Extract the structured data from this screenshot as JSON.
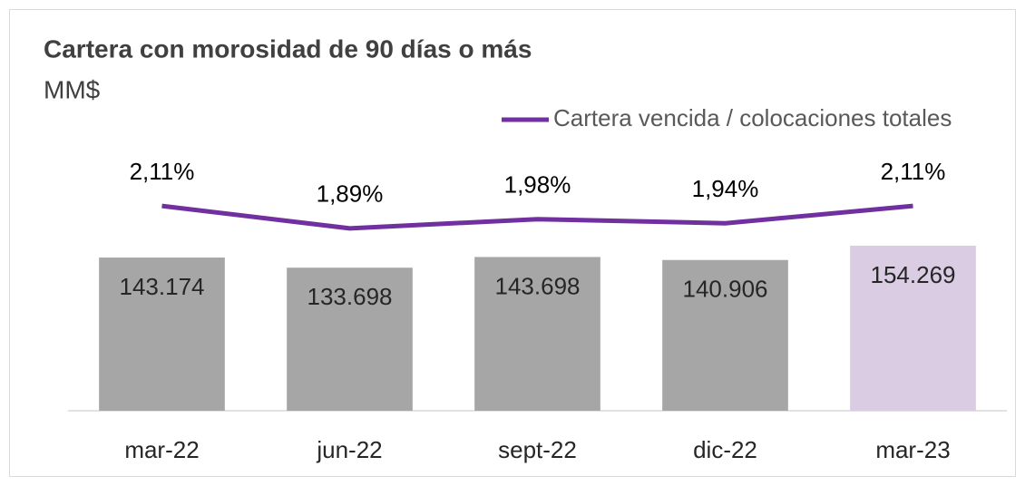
{
  "chart_data": {
    "type": "bar_line",
    "title": "Cartera con morosidad de 90 días o más",
    "subtitle": "MM$",
    "categories": [
      "mar-22",
      "jun-22",
      "sept-22",
      "dic-22",
      "mar-23"
    ],
    "series": [
      {
        "type": "bar",
        "colors": [
          "#a6a6a6",
          "#a6a6a6",
          "#a6a6a6",
          "#a6a6a6",
          "#d9cce3"
        ],
        "values": [
          143174,
          133698,
          143698,
          140906,
          154269
        ],
        "value_labels": [
          "143.174",
          "133.698",
          "143.698",
          "140.906",
          "154.269"
        ]
      },
      {
        "type": "line",
        "name": "Cartera vencida / colocaciones totales",
        "color": "#7030a0",
        "axis": "y2",
        "values": [
          2.11,
          1.89,
          1.98,
          1.94,
          2.11
        ],
        "value_labels": [
          "2,11%",
          "1,89%",
          "1,98%",
          "1,94%",
          "2,11%"
        ]
      }
    ],
    "ylim": [
      0,
      200000
    ],
    "y2lim": [
      0.1,
      2.2
    ]
  }
}
